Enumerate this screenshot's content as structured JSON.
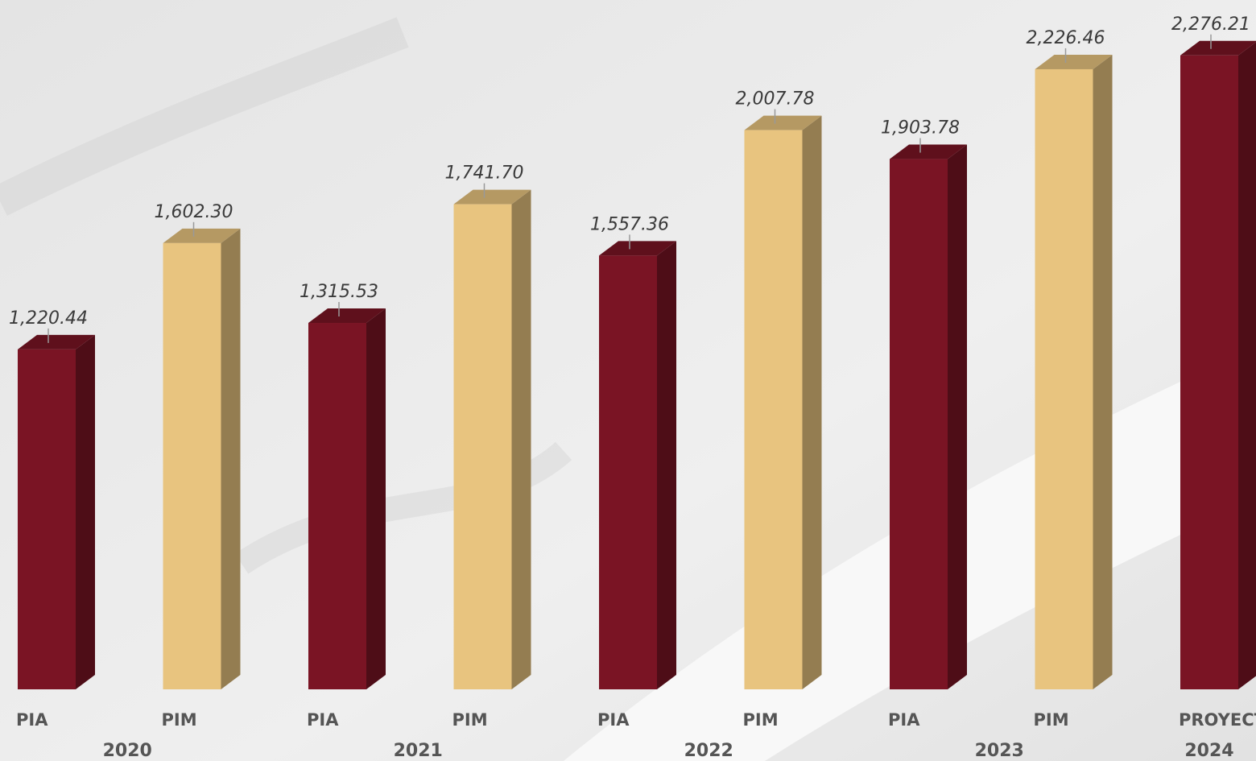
{
  "chart_data": {
    "type": "bar3d",
    "categories": [
      "PIA",
      "PIM",
      "PIA",
      "PIM",
      "PIA",
      "PIM",
      "PIA",
      "PIM",
      "PROYECTO"
    ],
    "groups": [
      "2020",
      "2021",
      "2022",
      "2023",
      "2024"
    ],
    "values": [
      1220.44,
      1602.3,
      1315.53,
      1741.7,
      1557.36,
      2007.78,
      1903.78,
      2226.46,
      2276.21
    ],
    "value_labels": [
      "1,220.44",
      "1,602.30",
      "1,315.53",
      "1,741.70",
      "1,557.36",
      "2,007.78",
      "1,903.78",
      "2,226.46",
      "2,276.21"
    ],
    "colors": [
      "#7a1424",
      "#e8c47f",
      "#7a1424",
      "#e8c47f",
      "#7a1424",
      "#e8c47f",
      "#7a1424",
      "#e8c47f",
      "#7a1424"
    ],
    "ylim": [
      0,
      2475
    ]
  }
}
